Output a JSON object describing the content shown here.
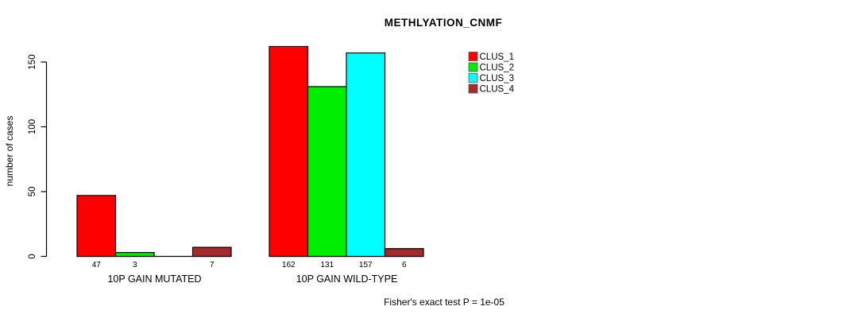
{
  "chart_data": {
    "type": "bar",
    "title": "METHLYATION_CNMF",
    "ylabel": "number of cases",
    "xlabel": "",
    "categories": [
      "10P GAIN MUTATED",
      "10P GAIN WILD-TYPE"
    ],
    "series": [
      {
        "name": "CLUS_1",
        "color": "#ff0000",
        "values": [
          47,
          162
        ]
      },
      {
        "name": "CLUS_2",
        "color": "#00ee00",
        "values": [
          3,
          131
        ]
      },
      {
        "name": "CLUS_3",
        "color": "#00ffff",
        "values": [
          0,
          157
        ]
      },
      {
        "name": "CLUS_4",
        "color": "#a52a2a",
        "values": [
          7,
          6
        ]
      }
    ],
    "yticks": [
      0,
      50,
      100,
      150
    ],
    "ylim": [
      0,
      165
    ],
    "grid": false,
    "legend_position": "top-right",
    "bar_borders": "#000000",
    "zero_value_labels_hidden": true,
    "annotation": "Fisher's exact test P = 1e-05"
  }
}
